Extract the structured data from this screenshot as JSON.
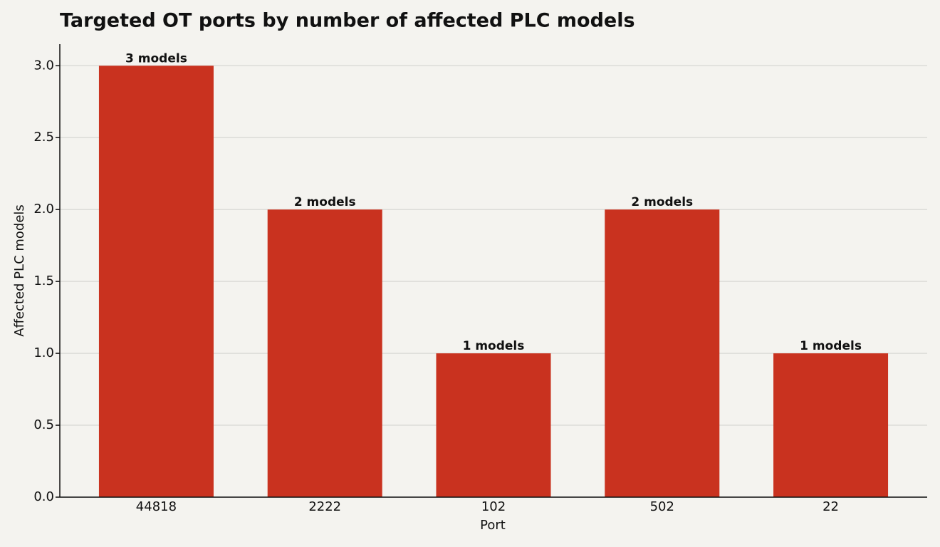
{
  "chart_data": {
    "type": "bar",
    "title": "Targeted OT ports by number of affected PLC models",
    "x_label": "Port",
    "y_label": "Affected PLC models",
    "categories": [
      "44818",
      "2222",
      "102",
      "502",
      "22"
    ],
    "values": [
      3,
      2,
      1,
      2,
      1
    ],
    "value_labels": [
      "3 models",
      "2 models",
      "1 models",
      "2 models",
      "1 models"
    ],
    "color": "#c9321f",
    "ylim": [
      0,
      3.15
    ],
    "yticks": [
      {
        "value": 0,
        "label": "0.0"
      },
      0.5,
      {
        "value": 1,
        "label": "1.0"
      },
      1.5,
      {
        "value": 2,
        "label": "2.0"
      },
      2.5,
      {
        "value": 3,
        "label": "3.0"
      }
    ],
    "grid": true
  }
}
